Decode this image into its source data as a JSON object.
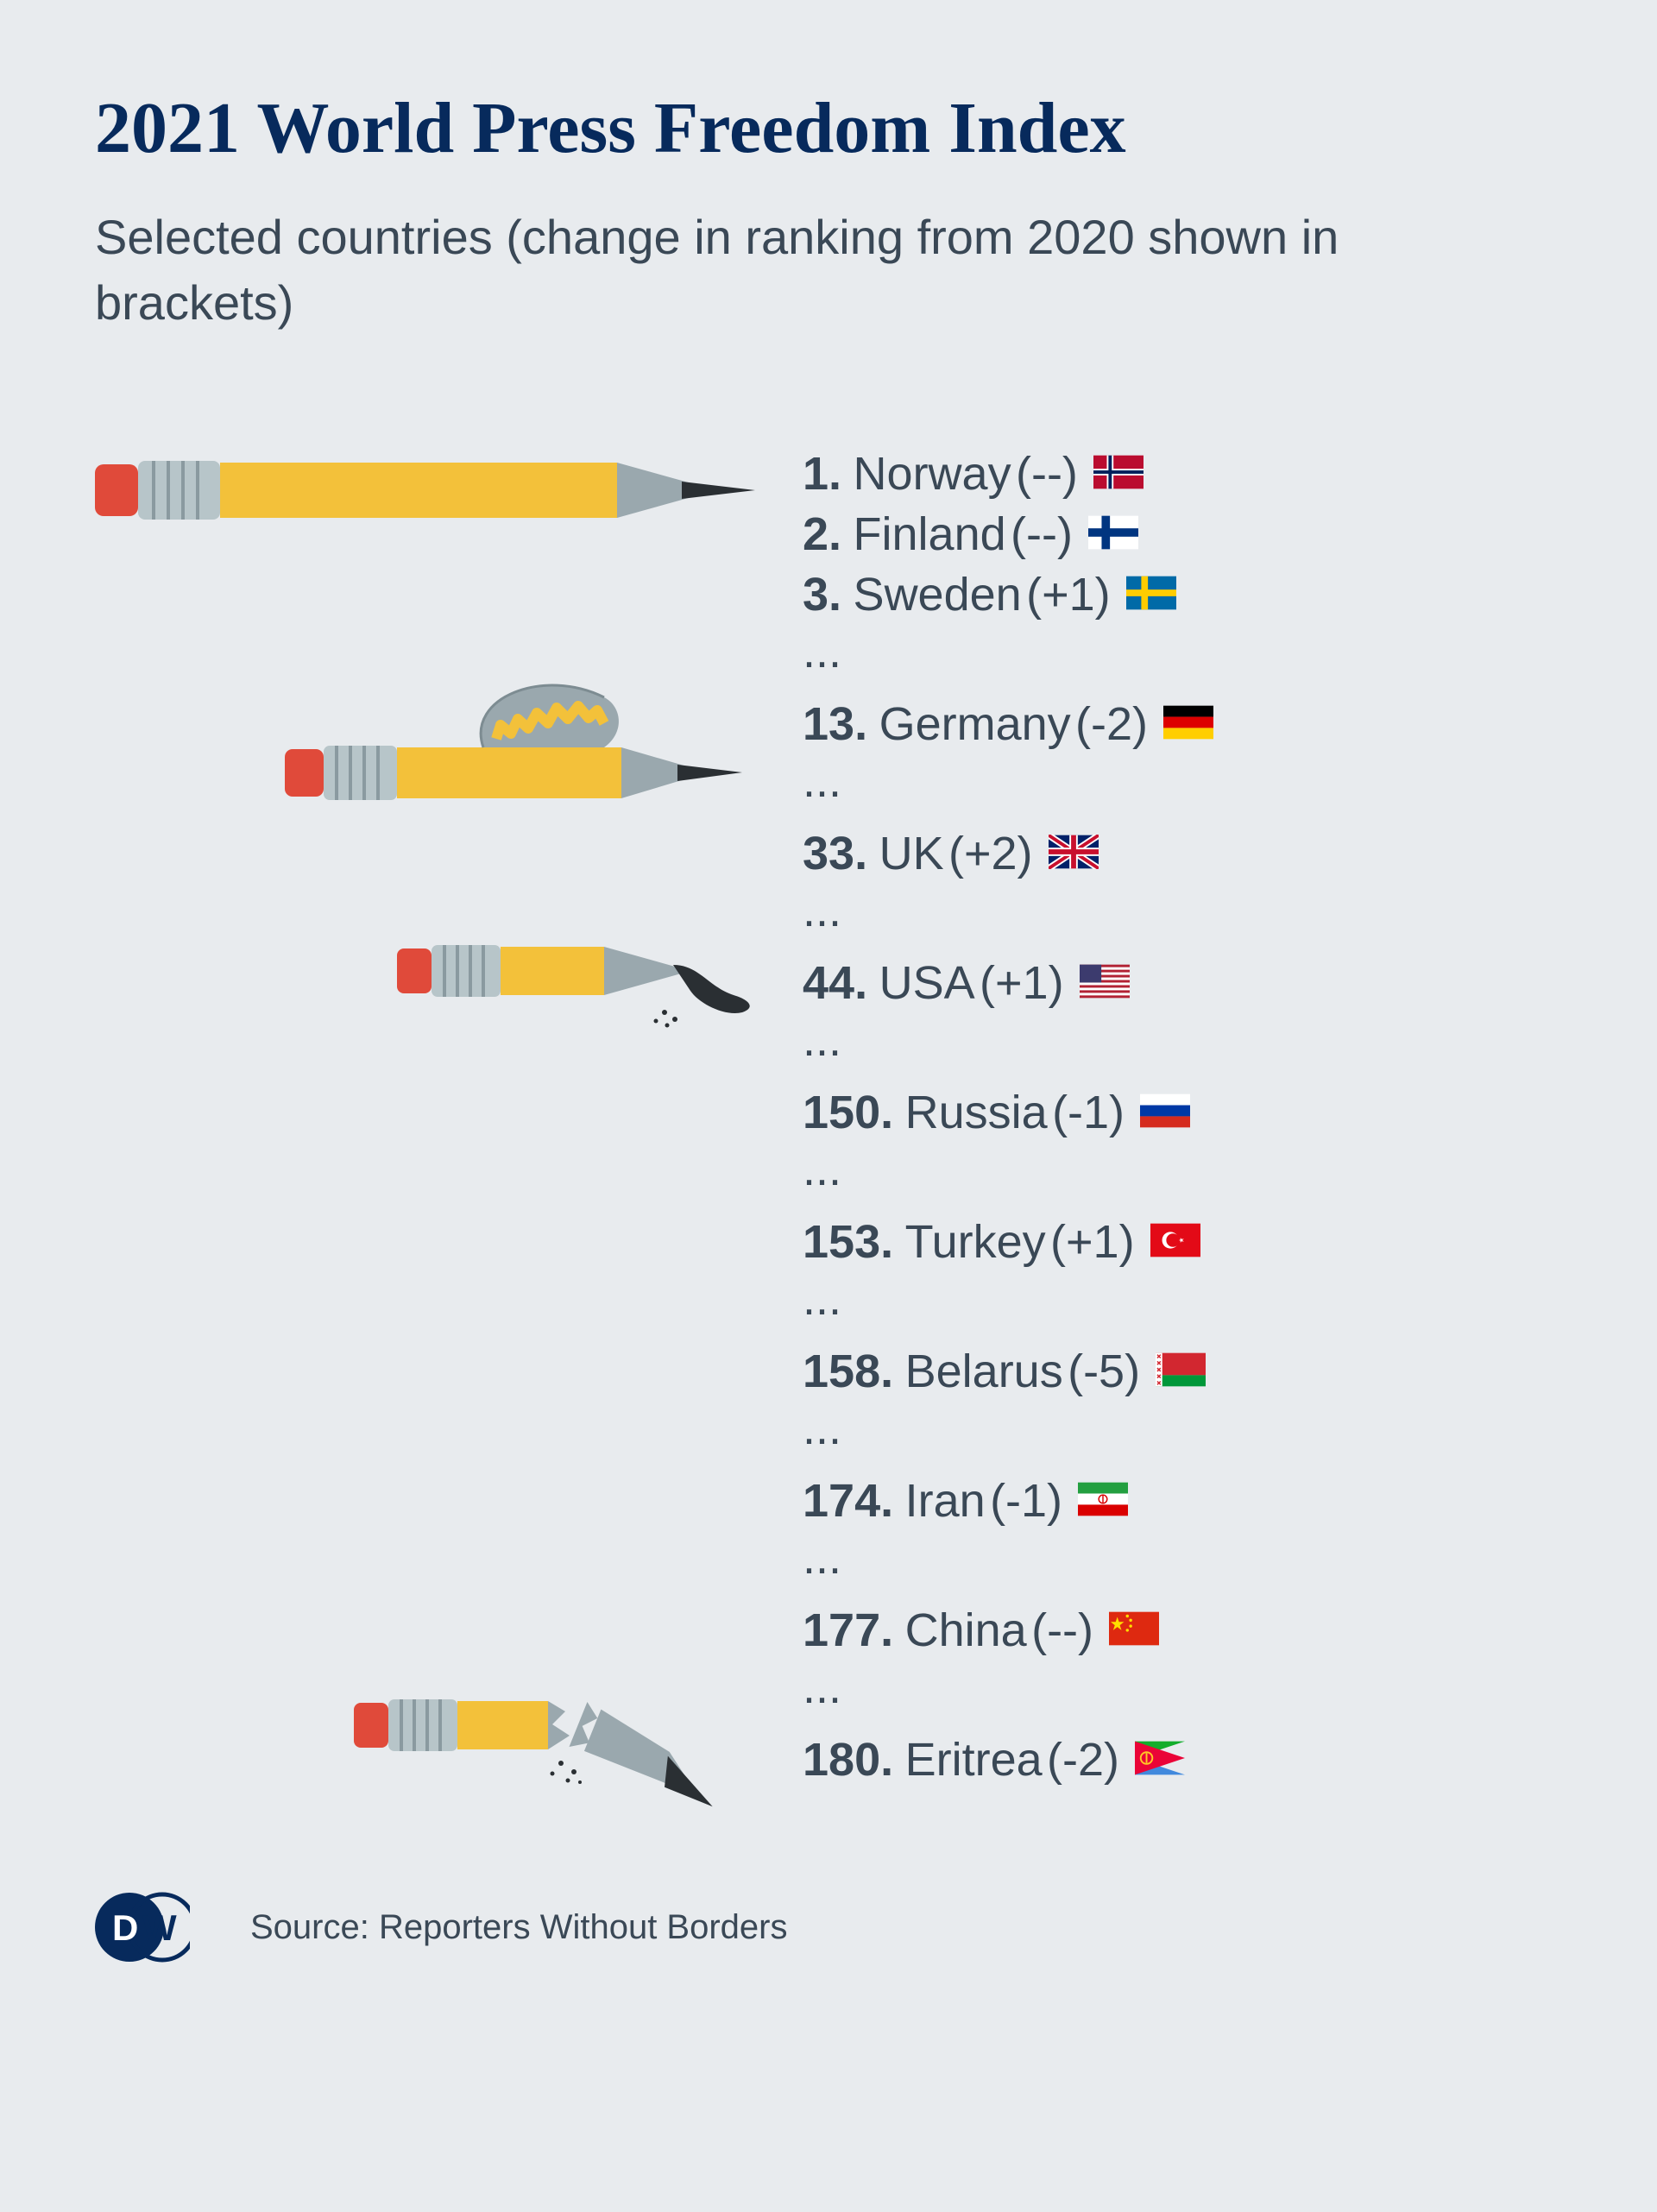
{
  "title": "2021 World Press Freedom Index",
  "subtitle": "Selected countries (change in ranking from 2020 shown in brackets)",
  "entries": [
    {
      "rank": "1.",
      "country": "Norway",
      "change": "(--)",
      "flag": "norway",
      "ellipsis_after": false
    },
    {
      "rank": "2.",
      "country": "Finland",
      "change": "(--)",
      "flag": "finland",
      "ellipsis_after": false
    },
    {
      "rank": "3.",
      "country": "Sweden",
      "change": "(+1)",
      "flag": "sweden",
      "ellipsis_after": true
    },
    {
      "rank": "13.",
      "country": "Germany",
      "change": "(-2)",
      "flag": "germany",
      "ellipsis_after": true
    },
    {
      "rank": "33.",
      "country": "UK",
      "change": "(+2)",
      "flag": "uk",
      "ellipsis_after": true
    },
    {
      "rank": "44.",
      "country": "USA",
      "change": "(+1)",
      "flag": "usa",
      "ellipsis_after": true
    },
    {
      "rank": "150.",
      "country": "Russia",
      "change": "(-1)",
      "flag": "russia",
      "ellipsis_after": true
    },
    {
      "rank": "153.",
      "country": "Turkey",
      "change": "(+1)",
      "flag": "turkey",
      "ellipsis_after": true
    },
    {
      "rank": "158.",
      "country": "Belarus",
      "change": "(-5)",
      "flag": "belarus",
      "ellipsis_after": true
    },
    {
      "rank": "174.",
      "country": "Iran",
      "change": "(-1)",
      "flag": "iran",
      "ellipsis_after": true
    },
    {
      "rank": "177.",
      "country": "China",
      "change": "(--)",
      "flag": "china",
      "ellipsis_after": true
    },
    {
      "rank": "180.",
      "country": "Eritrea",
      "change": "(-2)",
      "flag": "eritrea",
      "ellipsis_after": false
    }
  ],
  "source": "Source: Reporters Without Borders",
  "styling": {
    "background_color": "#e8ebee",
    "title_color": "#072a5c",
    "text_color": "#3a4856",
    "title_fontsize": 84,
    "subtitle_fontsize": 56,
    "row_fontsize": 54,
    "source_fontsize": 40,
    "flag_width": 58,
    "flag_height": 40,
    "pencil_yellow": "#f3c13a",
    "pencil_eraser": "#e04a3a",
    "pencil_ferrule": "#b7c5c9",
    "pencil_tip_wood": "#9aa8ae",
    "pencil_lead": "#2a2f33",
    "dw_logo_bg": "#072a5c",
    "dw_logo_fg": "#ffffff"
  }
}
